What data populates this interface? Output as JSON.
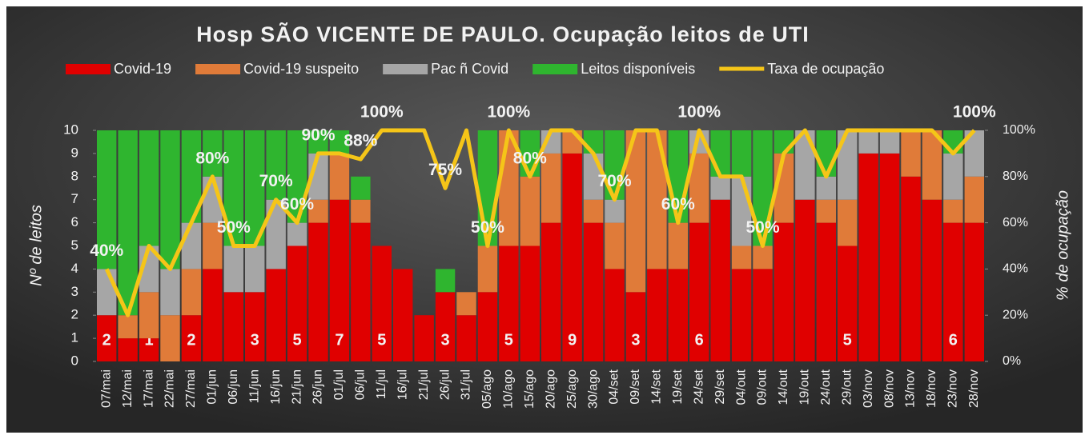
{
  "chart_data": {
    "type": "bar",
    "stacked": true,
    "title": "Hosp SÃO VICENTE DE PAULO. Ocupação leitos de UTI",
    "y_label": "Nº de leitos",
    "y2_label": "% de ocupação",
    "categories": [
      "07/mai",
      "12/mai",
      "17/mai",
      "22/mai",
      "27/mai",
      "01/jun",
      "06/jun",
      "11/jun",
      "16/jun",
      "21/jun",
      "26/jun",
      "01/jul",
      "06/jul",
      "11/jul",
      "16/jul",
      "21/jul",
      "26/jul",
      "31/jul",
      "05/ago",
      "10/ago",
      "15/ago",
      "20/ago",
      "25/ago",
      "30/ago",
      "04/set",
      "09/set",
      "14/set",
      "19/set",
      "24/set",
      "29/set",
      "04/out",
      "09/out",
      "14/out",
      "19/out",
      "24/out",
      "29/out",
      "03/nov",
      "08/nov",
      "13/nov",
      "18/nov",
      "23/nov",
      "28/nov"
    ],
    "series": [
      {
        "name": "Covid-19",
        "color": "#e00000",
        "values": [
          2,
          1,
          1,
          0,
          2,
          4,
          3,
          3,
          4,
          5,
          6,
          7,
          6,
          5,
          4,
          2,
          3,
          2,
          3,
          5,
          5,
          6,
          9,
          6,
          4,
          3,
          4,
          4,
          6,
          7,
          4,
          4,
          6,
          7,
          6,
          5,
          9,
          9,
          8,
          7,
          6,
          6
        ],
        "value_labels": [
          "2",
          null,
          "1",
          null,
          "2",
          null,
          null,
          "3",
          null,
          "5",
          null,
          "7",
          null,
          "5",
          null,
          null,
          "3",
          null,
          null,
          "5",
          null,
          null,
          "9",
          null,
          null,
          "3",
          null,
          null,
          "6",
          null,
          null,
          null,
          null,
          null,
          null,
          "5",
          null,
          null,
          null,
          null,
          "6",
          null
        ]
      },
      {
        "name": "Covid-19 suspeito",
        "color": "#e07b39",
        "values": [
          0,
          1,
          2,
          2,
          2,
          2,
          0,
          0,
          0,
          0,
          1,
          2,
          1,
          0,
          0,
          0,
          0,
          1,
          2,
          5,
          3,
          3,
          1,
          1,
          2,
          7,
          6,
          2,
          3,
          0,
          1,
          1,
          3,
          0,
          1,
          2,
          0,
          0,
          2,
          3,
          1,
          2
        ]
      },
      {
        "name": "Pac ñ Covid",
        "color": "#a6a6a6",
        "values": [
          2,
          0,
          2,
          2,
          2,
          2,
          2,
          2,
          3,
          1,
          2,
          0,
          0,
          0,
          0,
          0,
          0,
          0,
          0,
          0,
          0,
          1,
          0,
          2,
          1,
          0,
          0,
          0,
          1,
          1,
          3,
          0,
          0,
          3,
          1,
          3,
          1,
          1,
          0,
          0,
          2,
          2
        ]
      },
      {
        "name": "Leitos disponíveis",
        "color": "#2fb52f",
        "values": [
          6,
          8,
          5,
          6,
          4,
          2,
          5,
          5,
          3,
          4,
          1,
          1,
          1,
          0,
          0,
          0,
          1,
          0,
          5,
          0,
          2,
          0,
          0,
          1,
          3,
          0,
          0,
          4,
          0,
          2,
          2,
          5,
          1,
          0,
          2,
          0,
          0,
          0,
          0,
          0,
          1,
          0
        ]
      },
      {
        "name": "Taxa de ocupação",
        "color": "#f5c518",
        "type": "line",
        "axis": "y2",
        "values": [
          40,
          20,
          50,
          40,
          60,
          80,
          50,
          50,
          70,
          60,
          90,
          90,
          87.5,
          100,
          100,
          100,
          75,
          100,
          50,
          100,
          80,
          100,
          100,
          90,
          70,
          100,
          100,
          60,
          100,
          80,
          80,
          50,
          90,
          100,
          80,
          100,
          100,
          100,
          100,
          100,
          90,
          100
        ],
        "value_labels": [
          "40%",
          null,
          null,
          null,
          null,
          "80%",
          "50%",
          null,
          "70%",
          "60%",
          "90%",
          null,
          "88%",
          "100%",
          null,
          null,
          "75%",
          null,
          "50%",
          "100%",
          "80%",
          null,
          null,
          null,
          "70%",
          null,
          null,
          "60%",
          "100%",
          null,
          null,
          "50%",
          null,
          null,
          null,
          null,
          null,
          null,
          null,
          null,
          null,
          "100%"
        ]
      }
    ],
    "ylim": [
      0,
      10
    ],
    "yticks": [
      0,
      1,
      2,
      3,
      4,
      5,
      6,
      7,
      8,
      9,
      10
    ],
    "y2lim": [
      0,
      100
    ],
    "y2ticks": [
      {
        "value": 0,
        "label": "0%"
      },
      {
        "value": 20,
        "label": "20%"
      },
      {
        "value": 40,
        "label": "40%"
      },
      {
        "value": 60,
        "label": "60%"
      },
      {
        "value": 80,
        "label": "80%"
      },
      {
        "value": 100,
        "label": "100%"
      }
    ],
    "legend": "top"
  }
}
